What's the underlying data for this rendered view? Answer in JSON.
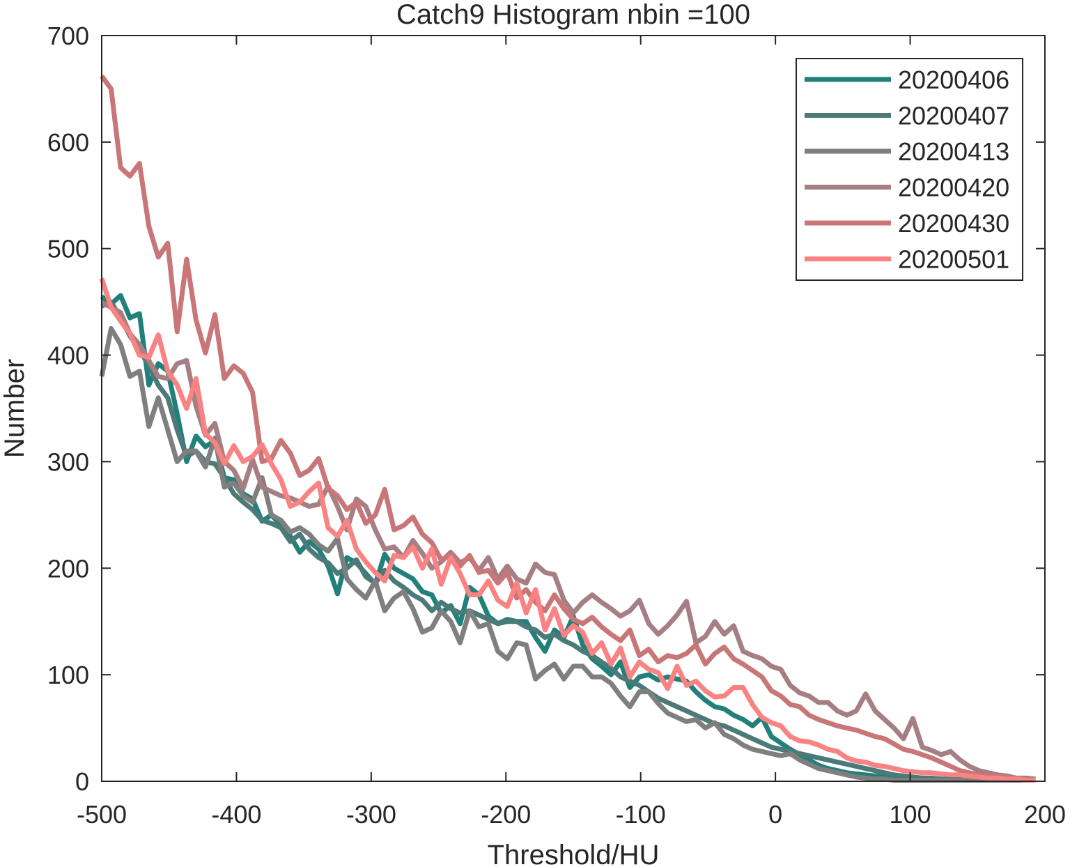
{
  "chart_data": {
    "type": "line",
    "title": "Catch9  Histogram nbin =100",
    "xlabel": "Threshold/HU",
    "ylabel": "Number",
    "xlim": [
      -500,
      200
    ],
    "ylim": [
      0,
      700
    ],
    "x_ticks": [
      -500,
      -400,
      -300,
      -200,
      -100,
      0,
      100,
      200
    ],
    "y_ticks": [
      0,
      100,
      200,
      300,
      400,
      500,
      600,
      700
    ],
    "x_tick_labels": [
      "-500",
      "-400",
      "-300",
      "-200",
      "-100",
      "0",
      "100",
      "200"
    ],
    "y_tick_labels": [
      "0",
      "100",
      "200",
      "300",
      "400",
      "500",
      "600",
      "700"
    ],
    "grid": false,
    "legend_position": "top-right",
    "x": [
      -500,
      -493,
      -486,
      -479,
      -472,
      -465,
      -458,
      -451,
      -444,
      -437,
      -430,
      -423,
      -416,
      -409,
      -402,
      -395,
      -388,
      -381,
      -374,
      -367,
      -360,
      -353,
      -346,
      -339,
      -332,
      -325,
      -318,
      -311,
      -304,
      -297,
      -290,
      -283,
      -276,
      -269,
      -262,
      -255,
      -248,
      -241,
      -234,
      -227,
      -220,
      -213,
      -206,
      -199,
      -192,
      -185,
      -178,
      -171,
      -164,
      -157,
      -150,
      -143,
      -136,
      -129,
      -122,
      -115,
      -108,
      -101,
      -94,
      -87,
      -80,
      -73,
      -66,
      -59,
      -52,
      -45,
      -38,
      -31,
      -24,
      -17,
      -10,
      -3,
      4,
      11,
      18,
      25,
      32,
      39,
      46,
      53,
      60,
      67,
      74,
      81,
      88,
      95,
      102,
      109,
      116,
      123,
      130,
      137,
      144,
      151,
      158,
      165,
      172,
      179,
      186,
      193
    ],
    "series": [
      {
        "name": "20200406",
        "color": "#21807a",
        "values": [
          455,
          448,
          456,
          435,
          439,
          372,
          392,
          385,
          345,
          300,
          324,
          314,
          320,
          285,
          283,
          270,
          265,
          244,
          250,
          240,
          230,
          215,
          225,
          218,
          202,
          176,
          210,
          205,
          195,
          185,
          213,
          200,
          195,
          190,
          178,
          175,
          158,
          165,
          148,
          182,
          175,
          155,
          148,
          152,
          150,
          150,
          135,
          122,
          142,
          135,
          155,
          128,
          115,
          108,
          100,
          112,
          88,
          98,
          100,
          95,
          98,
          96,
          94,
          84,
          76,
          70,
          68,
          62,
          58,
          52,
          60,
          42,
          36,
          30,
          25,
          20,
          15,
          12,
          10,
          8,
          7,
          6,
          5,
          4,
          4,
          3,
          3,
          2,
          2,
          2,
          1,
          1,
          1,
          1,
          1,
          1,
          1,
          1,
          1,
          1
        ]
      },
      {
        "name": "20200407",
        "color": "#4b7a79",
        "values": [
          446,
          450,
          435,
          418,
          405,
          390,
          372,
          360,
          330,
          305,
          310,
          300,
          298,
          285,
          270,
          262,
          255,
          245,
          242,
          238,
          225,
          232,
          218,
          210,
          205,
          195,
          200,
          208,
          192,
          186,
          198,
          188,
          182,
          175,
          170,
          160,
          168,
          162,
          158,
          160,
          156,
          152,
          148,
          150,
          150,
          145,
          142,
          135,
          138,
          132,
          128,
          122,
          118,
          112,
          106,
          98,
          94,
          90,
          84,
          78,
          74,
          70,
          66,
          62,
          58,
          54,
          52,
          48,
          44,
          40,
          36,
          32,
          30,
          28,
          26,
          24,
          22,
          20,
          18,
          16,
          14,
          12,
          10,
          8,
          6,
          5,
          4,
          3,
          3,
          2,
          2,
          2,
          1,
          1,
          1,
          1,
          1,
          1,
          1,
          1
        ]
      },
      {
        "name": "20200413",
        "color": "#7f7f7f",
        "values": [
          380,
          425,
          410,
          380,
          385,
          333,
          360,
          330,
          300,
          310,
          310,
          295,
          322,
          276,
          280,
          268,
          262,
          285,
          250,
          245,
          234,
          238,
          232,
          222,
          216,
          228,
          190,
          180,
          172,
          188,
          160,
          172,
          178,
          162,
          140,
          144,
          160,
          150,
          130,
          160,
          145,
          148,
          122,
          115,
          130,
          128,
          96,
          104,
          110,
          96,
          108,
          108,
          98,
          98,
          92,
          80,
          70,
          84,
          84,
          73,
          64,
          60,
          56,
          58,
          50,
          55,
          44,
          40,
          34,
          30,
          28,
          26,
          24,
          26,
          20,
          16,
          12,
          10,
          8,
          6,
          4,
          3,
          2,
          2,
          1,
          1,
          1,
          1,
          1,
          1,
          1,
          1,
          1,
          1,
          1,
          1,
          1,
          1,
          1,
          1
        ]
      },
      {
        "name": "20200420",
        "color": "#a67f84",
        "values": [
          449,
          445,
          440,
          420,
          410,
          395,
          380,
          378,
          392,
          395,
          352,
          325,
          336,
          300,
          292,
          275,
          302,
          276,
          272,
          268,
          266,
          262,
          258,
          260,
          277,
          258,
          236,
          265,
          258,
          236,
          218,
          220,
          210,
          226,
          214,
          200,
          206,
          215,
          205,
          210,
          198,
          210,
          190,
          202,
          190,
          186,
          204,
          196,
          194,
          170,
          158,
          168,
          175,
          168,
          162,
          155,
          160,
          170,
          148,
          138,
          146,
          156,
          169,
          130,
          136,
          150,
          138,
          146,
          122,
          118,
          115,
          108,
          105,
          90,
          83,
          80,
          74,
          74,
          66,
          62,
          66,
          82,
          66,
          58,
          50,
          40,
          59,
          32,
          29,
          25,
          28,
          20,
          14,
          10,
          8,
          6,
          5,
          3,
          3,
          2
        ]
      },
      {
        "name": "20200430",
        "color": "#c97678",
        "values": [
          662,
          650,
          576,
          568,
          580,
          521,
          492,
          505,
          422,
          490,
          433,
          402,
          438,
          378,
          390,
          383,
          365,
          300,
          303,
          320,
          308,
          287,
          292,
          303,
          275,
          268,
          255,
          262,
          242,
          250,
          274,
          236,
          240,
          248,
          232,
          224,
          208,
          212,
          202,
          212,
          196,
          198,
          186,
          196,
          172,
          180,
          168,
          160,
          175,
          162,
          152,
          148,
          154,
          145,
          138,
          132,
          142,
          118,
          124,
          112,
          118,
          116,
          120,
          128,
          110,
          120,
          126,
          115,
          110,
          104,
          98,
          85,
          80,
          72,
          70,
          62,
          58,
          55,
          52,
          50,
          48,
          45,
          42,
          40,
          35,
          30,
          28,
          25,
          22,
          18,
          14,
          10,
          8,
          6,
          5,
          4,
          3,
          2,
          2,
          1
        ]
      },
      {
        "name": "20200501",
        "color": "#f98283",
        "values": [
          472,
          445,
          432,
          420,
          400,
          398,
          419,
          385,
          372,
          350,
          378,
          326,
          318,
          298,
          315,
          300,
          305,
          316,
          298,
          283,
          258,
          262,
          272,
          280,
          238,
          230,
          245,
          218,
          206,
          196,
          188,
          212,
          210,
          220,
          200,
          218,
          185,
          210,
          195,
          175,
          175,
          188,
          170,
          164,
          186,
          158,
          180,
          142,
          162,
          137,
          146,
          140,
          120,
          130,
          110,
          125,
          98,
          112,
          105,
          102,
          87,
          108,
          90,
          94,
          85,
          79,
          80,
          88,
          88,
          72,
          60,
          55,
          52,
          42,
          38,
          37,
          34,
          30,
          28,
          22,
          19,
          18,
          15,
          14,
          12,
          10,
          9,
          8,
          8,
          7,
          6,
          6,
          5,
          4,
          3,
          3,
          2,
          2,
          1,
          1
        ]
      }
    ]
  }
}
